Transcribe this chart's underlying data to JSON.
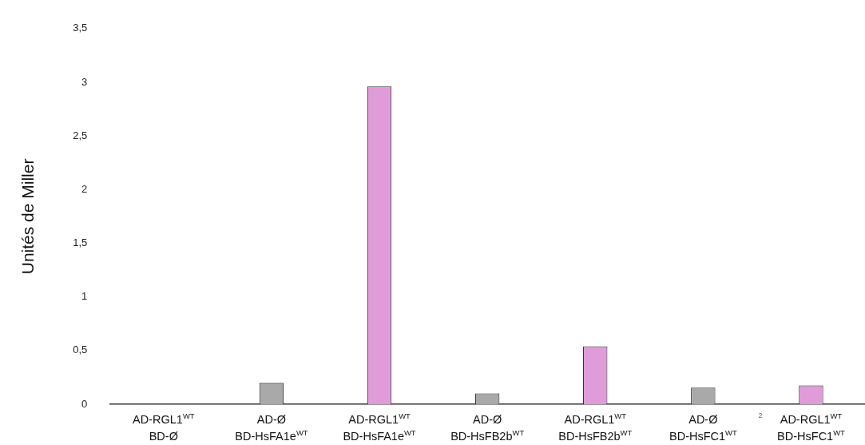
{
  "chart_data": {
    "type": "bar",
    "ylabel": "Unités de Miller",
    "categories": [
      "AD-RGL1$^{WT}$\nBD-Ø",
      "AD-Ø\nBD-HsFA1e$^{WT}$",
      "AD-RGL1$^{WT}$\nBD-HsFA1e$^{WT}$",
      "AD-Ø\nBD-HsFB2b$^{WT}$",
      "AD-RGL1$^{WT}$\nBD-HsFB2b$^{WT}$",
      "AD-Ø\nBD-HsFC1$^{WT}$",
      "AD-RGL1$^{WT}$\nBD-HsFC1$^{WT}$"
    ],
    "values": [
      0,
      0.2,
      2.96,
      0.1,
      0.54,
      0.155,
      0.175
    ],
    "colors": [
      "#a9a9a9",
      "#a9a9a9",
      "#e09bd9",
      "#a9a9a9",
      "#e09bd9",
      "#a9a9a9",
      "#e09bd9"
    ],
    "ylim": [
      0,
      3.5
    ],
    "yticks": [
      0,
      {
        "value": 0.5,
        "label": "0,5"
      },
      1,
      {
        "value": 1.5,
        "label": "1,5"
      },
      2,
      {
        "value": 2.5,
        "label": "2,5"
      },
      3,
      {
        "value": 3.5,
        "label": "3,5"
      }
    ],
    "grid": false,
    "legend": false,
    "annotations": [
      "2"
    ]
  }
}
